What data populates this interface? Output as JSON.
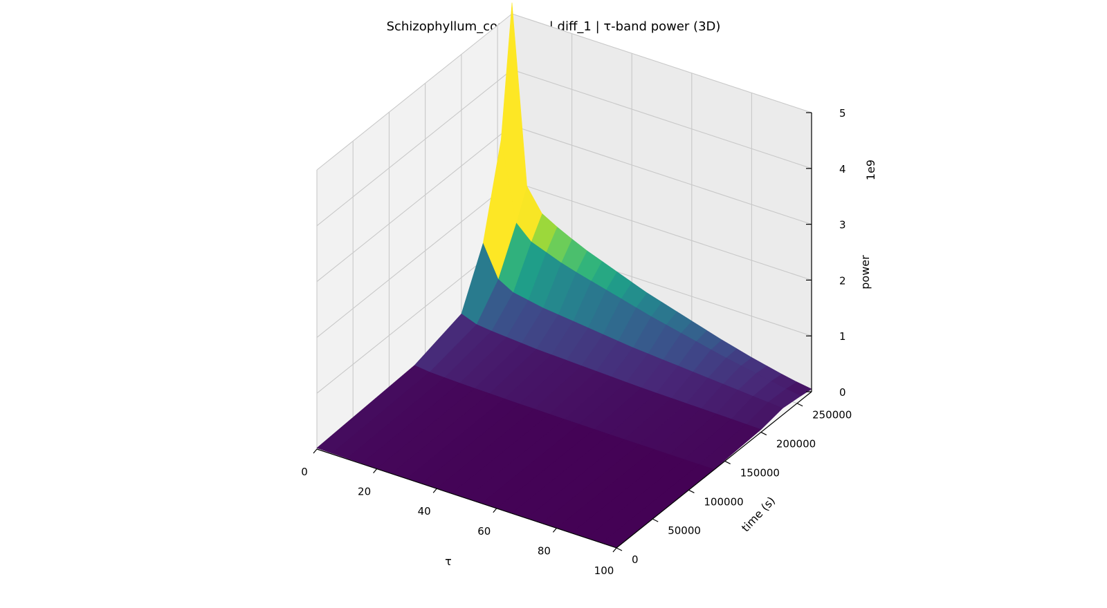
{
  "chart_data": {
    "type": "surface3d",
    "title": "Schizophyllum_commune | diff_1 | τ-band power (3D)",
    "xlabel": "τ",
    "ylabel": "time (s)",
    "zlabel": "power",
    "z_offset_label": "1e9",
    "colormap": "viridis",
    "xlim": [
      0,
      100
    ],
    "ylim": [
      0,
      270000
    ],
    "zlim": [
      0,
      5
    ],
    "x_ticks": [
      "0",
      "20",
      "40",
      "60",
      "80",
      "100"
    ],
    "y_ticks": [
      "0",
      "50000",
      "100000",
      "150000",
      "200000",
      "250000"
    ],
    "z_ticks": [
      "0",
      "1",
      "2",
      "3",
      "4",
      "5"
    ],
    "grid": true,
    "series": [
      {
        "time": 0,
        "tau": [
          0,
          5,
          10,
          15,
          20,
          25,
          30,
          35,
          40,
          45,
          50,
          55,
          60,
          65,
          70,
          75,
          80,
          85,
          90,
          95,
          100
        ],
        "power": [
          0.02,
          0.015,
          0.012,
          0.01,
          0.009,
          0.008,
          0.007,
          0.006,
          0.005,
          0.005,
          0.004,
          0.004,
          0.003,
          0.003,
          0.003,
          0.002,
          0.002,
          0.002,
          0.002,
          0.002,
          0.002
        ]
      },
      {
        "time": 135000,
        "tau": [
          0,
          5,
          10,
          15,
          20,
          25,
          30,
          35,
          40,
          45,
          50,
          55,
          60,
          65,
          70,
          75,
          80,
          85,
          90,
          95,
          100
        ],
        "power": [
          0.1,
          0.07,
          0.06,
          0.05,
          0.045,
          0.04,
          0.035,
          0.03,
          0.028,
          0.025,
          0.022,
          0.02,
          0.018,
          0.016,
          0.014,
          0.013,
          0.012,
          0.011,
          0.01,
          0.009,
          0.008
        ]
      },
      {
        "time": 200000,
        "tau": [
          0,
          5,
          10,
          15,
          20,
          25,
          30,
          35,
          40,
          45,
          50,
          55,
          60,
          65,
          70,
          75,
          80,
          85,
          90,
          95,
          100
        ],
        "power": [
          0.35,
          0.25,
          0.22,
          0.2,
          0.18,
          0.16,
          0.15,
          0.14,
          0.13,
          0.12,
          0.11,
          0.1,
          0.09,
          0.085,
          0.08,
          0.075,
          0.07,
          0.065,
          0.06,
          0.055,
          0.05
        ]
      },
      {
        "time": 230000,
        "tau": [
          0,
          5,
          10,
          15,
          20,
          25,
          30,
          35,
          40,
          45,
          50,
          55,
          60,
          65,
          70,
          75,
          80,
          85,
          90,
          95,
          100
        ],
        "power": [
          1.3,
          0.75,
          0.6,
          0.55,
          0.5,
          0.47,
          0.44,
          0.41,
          0.38,
          0.35,
          0.32,
          0.3,
          0.28,
          0.26,
          0.24,
          0.22,
          0.2,
          0.18,
          0.16,
          0.14,
          0.12
        ]
      },
      {
        "time": 255000,
        "tau": [
          0,
          5,
          10,
          15,
          20,
          25,
          30,
          35,
          40,
          45,
          50,
          55,
          60,
          65,
          70,
          75,
          80,
          85,
          90,
          95,
          100
        ],
        "power": [
          2.9,
          1.5,
          1.25,
          1.15,
          1.05,
          0.97,
          0.9,
          0.83,
          0.76,
          0.69,
          0.62,
          0.56,
          0.5,
          0.44,
          0.38,
          0.32,
          0.27,
          0.22,
          0.17,
          0.12,
          0.08
        ]
      },
      {
        "time": 270000,
        "tau": [
          0,
          5,
          10,
          15,
          20,
          25,
          30,
          35,
          40,
          45,
          50,
          55,
          60,
          65,
          70,
          75,
          80,
          85,
          90,
          95,
          100
        ],
        "power": [
          5.2,
          2.0,
          1.6,
          1.45,
          1.32,
          1.2,
          1.1,
          1.0,
          0.9,
          0.8,
          0.72,
          0.64,
          0.56,
          0.48,
          0.4,
          0.33,
          0.26,
          0.2,
          0.14,
          0.09,
          0.05
        ]
      }
    ]
  }
}
